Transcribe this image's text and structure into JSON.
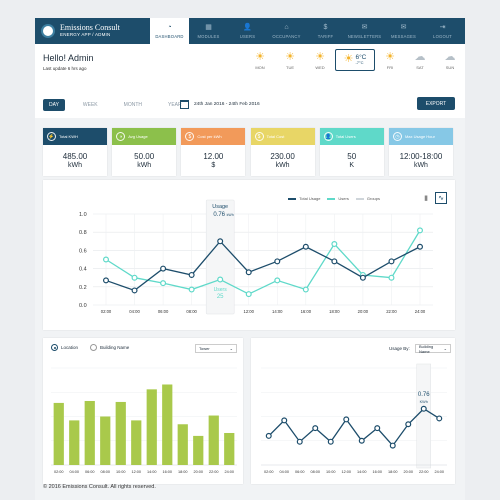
{
  "brand": {
    "name": "Emissions Consult",
    "sub": "ENERGY APP / ADMIN"
  },
  "nav": [
    {
      "label": "DASHBOARD",
      "icon": "dashboard-icon",
      "glyph": "◔",
      "active": true
    },
    {
      "label": "MODULES",
      "icon": "modules-icon",
      "glyph": "▦",
      "active": false
    },
    {
      "label": "USERS",
      "icon": "users-icon",
      "glyph": "👤",
      "active": false
    },
    {
      "label": "OCCUPANCY",
      "icon": "occupancy-icon",
      "glyph": "⌂",
      "active": false
    },
    {
      "label": "TARIFF",
      "icon": "tariff-icon",
      "glyph": "$",
      "active": false
    },
    {
      "label": "NEWSLETTERS",
      "icon": "newsletters-icon",
      "glyph": "✉",
      "active": false
    },
    {
      "label": "MESSAGES",
      "icon": "messages-icon",
      "glyph": "✉",
      "active": false
    },
    {
      "label": "LOGOUT",
      "icon": "logout-icon",
      "glyph": "⇥",
      "active": false
    }
  ],
  "header": {
    "greeting": "Hello! Admin",
    "last_update": "Last update 6 hrs ago"
  },
  "weather": [
    {
      "day": "MON",
      "icon": "sun-icon",
      "glyph": "☀",
      "kind": "sun"
    },
    {
      "day": "TUE",
      "icon": "sun-icon",
      "glyph": "☀",
      "kind": "sun"
    },
    {
      "day": "WED",
      "icon": "sun-icon",
      "glyph": "☀",
      "kind": "sun"
    },
    {
      "day": "FRI",
      "icon": "sun-icon",
      "glyph": "☀",
      "kind": "sun"
    },
    {
      "day": "SAT",
      "icon": "cloud-icon",
      "glyph": "☁",
      "kind": "cloud"
    },
    {
      "day": "SUN",
      "icon": "cloud-icon",
      "glyph": "☁",
      "kind": "cloud"
    }
  ],
  "weather_current": {
    "temp": "6°C",
    "low": "-7°C"
  },
  "periods": [
    {
      "label": "DAY",
      "active": true
    },
    {
      "label": "WEEK",
      "active": false
    },
    {
      "label": "MONTH",
      "active": false
    },
    {
      "label": "YEAR",
      "active": false
    }
  ],
  "date_range": "24th Jan 2016 - 24th Feb 2016",
  "export_label": "EXPORT",
  "kpis": [
    {
      "title": "Total KWH",
      "value": "485.00",
      "unit": "kWh",
      "color": "#1d4d6b",
      "icon": "bolt-icon",
      "glyph": "⚡"
    },
    {
      "title": "Avg Usage",
      "value": "50.00",
      "unit": "kWh",
      "color": "#8cc04b",
      "icon": "gauge-icon",
      "glyph": "◑"
    },
    {
      "title": "Cost per kWh",
      "value": "12.00",
      "unit": "$",
      "color": "#f29a5a",
      "icon": "cost-icon",
      "glyph": "$"
    },
    {
      "title": "Total Cost",
      "value": "230.00",
      "unit": "kWh",
      "color": "#e8d666",
      "icon": "total-cost-icon",
      "glyph": "$"
    },
    {
      "title": "Total Users",
      "value": "50",
      "unit": "K",
      "color": "#5fd9c9",
      "icon": "users-icon",
      "glyph": "👤"
    },
    {
      "title": "Max Usage Hour",
      "value": "12:00-18:00",
      "unit": "kWh",
      "color": "#86c8e6",
      "icon": "clock-icon",
      "glyph": "◷"
    }
  ],
  "main_legend": [
    {
      "label": "Total Usage",
      "color": "#1d4d6b"
    },
    {
      "label": "Users",
      "color": "#5fd9c9"
    },
    {
      "label": "Groups",
      "color": "#cfd5da"
    }
  ],
  "main_tooltip": {
    "title": "Usage",
    "value": "0.76",
    "unit": "kWh",
    "sub_label": "Users",
    "sub_value": "25"
  },
  "left_panel": {
    "radio_location": "Location",
    "radio_building": "Building Name",
    "select_value": "Tower"
  },
  "right_panel": {
    "usage_by_label": "Usage By:",
    "select_value": "Building Name",
    "tooltip_value": "0.76",
    "tooltip_unit": "KWh"
  },
  "footer": "© 2016 Emissions Consult. All rights reserved.",
  "chart_data": [
    {
      "type": "line",
      "x": [
        "02:00",
        "04:00",
        "06:00",
        "08:00",
        "10:00",
        "12:00",
        "14:00",
        "16:00",
        "18:00",
        "20:00",
        "22:00",
        "24:00"
      ],
      "ylim": [
        0,
        1.0
      ],
      "yticks": [
        "0.0",
        "0.2",
        "0.4",
        "0.6",
        "0.8",
        "1.0"
      ],
      "series": [
        {
          "name": "Total Usage",
          "color": "#1d4d6b",
          "values": [
            0.27,
            0.16,
            0.4,
            0.33,
            0.7,
            0.36,
            0.48,
            0.64,
            0.48,
            0.3,
            0.48,
            0.64
          ]
        },
        {
          "name": "Users",
          "color": "#5fd9c9",
          "values": [
            0.5,
            0.3,
            0.24,
            0.17,
            0.28,
            0.12,
            0.27,
            0.17,
            0.67,
            0.33,
            0.3,
            0.82
          ]
        }
      ]
    },
    {
      "type": "bar",
      "categories": [
        "02:00",
        "04:00",
        "06:00",
        "08:00",
        "10:00",
        "12:00",
        "14:00",
        "16:00",
        "18:00",
        "20:00",
        "22:00",
        "24:00"
      ],
      "ylim": [
        0,
        1.0
      ],
      "color": "#a9c94b",
      "values": [
        0.64,
        0.46,
        0.66,
        0.5,
        0.65,
        0.46,
        0.78,
        0.83,
        0.42,
        0.3,
        0.51,
        0.33
      ]
    },
    {
      "type": "line",
      "categories": [
        "02:00",
        "04:00",
        "06:00",
        "08:00",
        "10:00",
        "12:00",
        "14:00",
        "16:00",
        "18:00",
        "20:00",
        "22:00",
        "24:00"
      ],
      "ylim": [
        0,
        1.0
      ],
      "color": "#1d4d6b",
      "values": [
        0.3,
        0.46,
        0.24,
        0.38,
        0.24,
        0.47,
        0.25,
        0.38,
        0.2,
        0.42,
        0.58,
        0.48
      ]
    }
  ]
}
